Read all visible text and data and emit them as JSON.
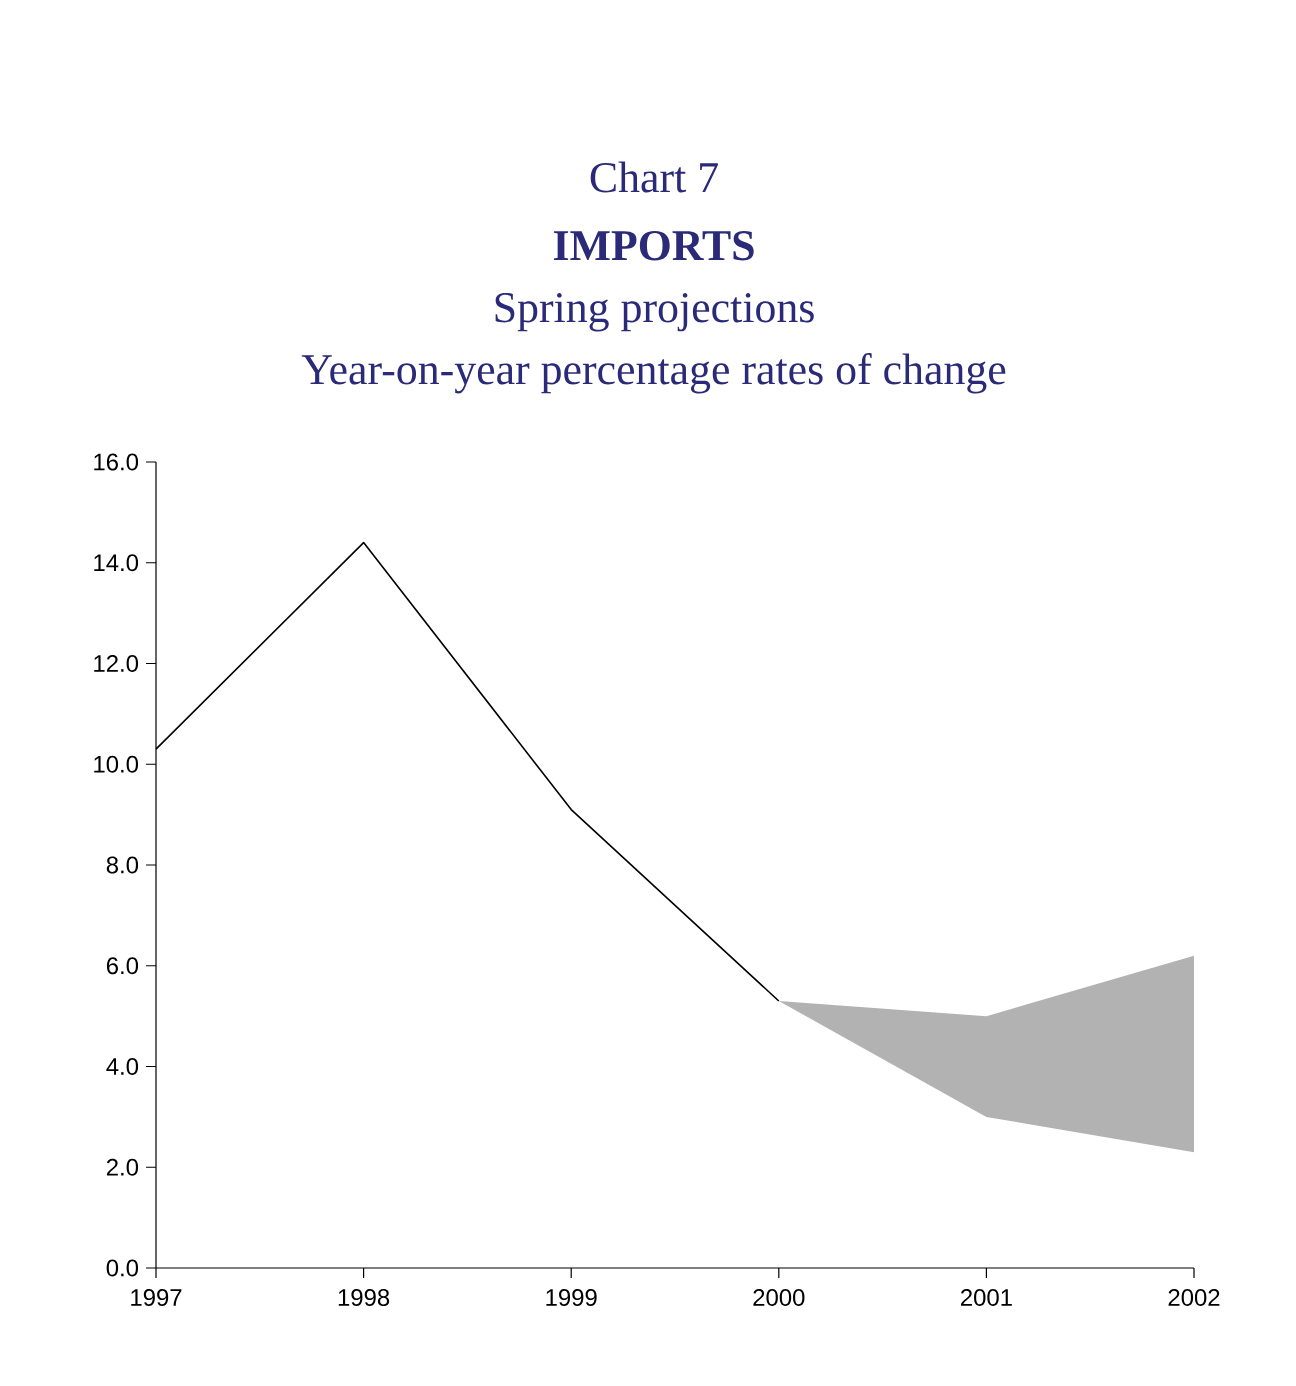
{
  "chart_data": {
    "type": "line",
    "title": "IMPORTS",
    "subtitle": "Spring projections",
    "annotations": [
      "Chart 7",
      "Year-on-year percentage rates of change"
    ],
    "series": [
      {
        "color": "#000000",
        "x": [
          1997,
          1998,
          1999,
          2000,
          2001,
          2002
        ],
        "values": [
          10.3,
          14.4,
          9.1,
          5.3,
          null,
          null
        ],
        "lower": [
          null,
          null,
          null,
          5.3,
          3.0,
          2.3
        ],
        "upper": [
          null,
          null,
          null,
          5.3,
          5.0,
          6.2
        ]
      }
    ],
    "xlim": [
      1997,
      2002
    ],
    "xticks": [
      1997,
      1998,
      1999,
      2000,
      2001,
      2002
    ],
    "ylim": [
      0,
      16
    ],
    "yticks": [
      {
        "value": 0,
        "label": "0.0"
      },
      {
        "value": 2,
        "label": "2.0"
      },
      {
        "value": 4,
        "label": "4.0"
      },
      {
        "value": 6,
        "label": "6.0"
      },
      {
        "value": 8,
        "label": "8.0"
      },
      {
        "value": 10,
        "label": "10.0"
      },
      {
        "value": 12,
        "label": "12.0"
      },
      {
        "value": 14,
        "label": "14.0"
      },
      {
        "value": 16,
        "label": "16.0"
      }
    ],
    "grid": false
  }
}
